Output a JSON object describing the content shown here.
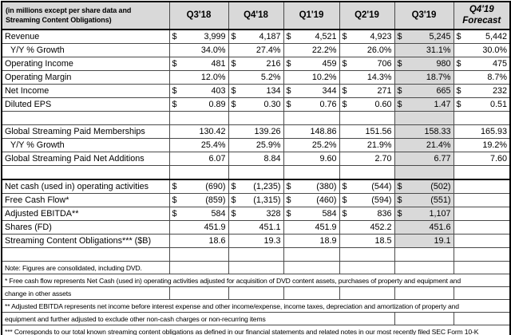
{
  "colors": {
    "header_bg": "#d9d9d9",
    "highlight_bg": "#d9d9d9",
    "grid_line": "#4a4a4a",
    "frame": "#000000"
  },
  "table": {
    "corner_label": "(in millions except per share data and Streaming Content Obligations)",
    "columns": [
      {
        "label": "Q3'18"
      },
      {
        "label": "Q4'18"
      },
      {
        "label": "Q1'19"
      },
      {
        "label": "Q2'19"
      },
      {
        "label": "Q3'19",
        "highlight": true
      },
      {
        "label": "Q4'19 Forecast",
        "lines": [
          "Q4'19",
          "Forecast"
        ],
        "italic": true
      }
    ],
    "rows": [
      {
        "label": "Revenue",
        "dollar": true,
        "values": [
          "3,999",
          "4,187",
          "4,521",
          "4,923",
          "5,245",
          "5,442"
        ]
      },
      {
        "label": "Y/Y % Growth",
        "indent": true,
        "values": [
          "34.0%",
          "27.4%",
          "22.2%",
          "26.0%",
          "31.1%",
          "30.0%"
        ]
      },
      {
        "label": "Operating Income",
        "dollar": true,
        "values": [
          "481",
          "216",
          "459",
          "706",
          "980",
          "475"
        ]
      },
      {
        "label": "Operating Margin",
        "values": [
          "12.0%",
          "5.2%",
          "10.2%",
          "14.3%",
          "18.7%",
          "8.7%"
        ]
      },
      {
        "label": "Net Income",
        "dollar": true,
        "values": [
          "403",
          "134",
          "344",
          "271",
          "665",
          "232"
        ]
      },
      {
        "label": "Diluted EPS",
        "dollar": true,
        "values": [
          "0.89",
          "0.30",
          "0.76",
          "0.60",
          "1.47",
          "0.51"
        ]
      },
      {
        "label": "",
        "values": [
          "",
          "",
          "",
          "",
          "",
          ""
        ]
      },
      {
        "label": "Global Streaming Paid Memberships",
        "values": [
          "130.42",
          "139.26",
          "148.86",
          "151.56",
          "158.33",
          "165.93"
        ]
      },
      {
        "label": "Y/Y % Growth",
        "indent": true,
        "values": [
          "25.4%",
          "25.9%",
          "25.2%",
          "21.9%",
          "21.4%",
          "19.2%"
        ]
      },
      {
        "label": "Global Streaming Paid Net Additions",
        "values": [
          "6.07",
          "8.84",
          "9.60",
          "2.70",
          "6.77",
          "7.60"
        ]
      },
      {
        "label": "",
        "values": [
          "",
          "",
          "",
          "",
          "",
          ""
        ]
      },
      {
        "label": "Net cash (used in) operating activities",
        "dollar": true,
        "thick_top": true,
        "values": [
          "(690)",
          "(1,235)",
          "(380)",
          "(544)",
          "(502)",
          ""
        ]
      },
      {
        "label": "Free Cash Flow*",
        "dollar": true,
        "values": [
          "(859)",
          "(1,315)",
          "(460)",
          "(594)",
          "(551)",
          ""
        ]
      },
      {
        "label": "Adjusted EBITDA**",
        "dollar": true,
        "values": [
          "584",
          "328",
          "584",
          "836",
          "1,107",
          ""
        ]
      },
      {
        "label": "Shares (FD)",
        "values": [
          "451.9",
          "451.1",
          "451.9",
          "452.2",
          "451.6",
          ""
        ]
      },
      {
        "label": "Streaming Content Obligations*** ($B)",
        "values": [
          "18.6",
          "19.3",
          "18.9",
          "18.5",
          "19.1",
          ""
        ]
      },
      {
        "label": "",
        "no_highlight": true,
        "values": [
          "",
          "",
          "",
          "",
          "",
          ""
        ]
      }
    ],
    "note": "Note: Figures are consolidated, including DVD.",
    "footnotes": [
      {
        "text": "* Free cash flow represents Net Cash (used in) operating activities adjusted for acquisition of DVD content assets, purchases of property and equipment and",
        "span": 7
      },
      {
        "text": "change in other assets",
        "span": 1
      },
      {
        "text": "** Adjusted EBITDA represents net income before interest expense and other income/expense, income taxes, depreciation and amortization of property and",
        "span": 7
      },
      {
        "text": "equipment and further adjusted to exclude other non-cash charges or non-recurring items",
        "span": 5
      },
      {
        "text": "*** Corresponds to our total known streaming content obligations as defined in our financial statements and related notes in our most recently filed SEC Form 10-K",
        "span": 7
      }
    ]
  }
}
